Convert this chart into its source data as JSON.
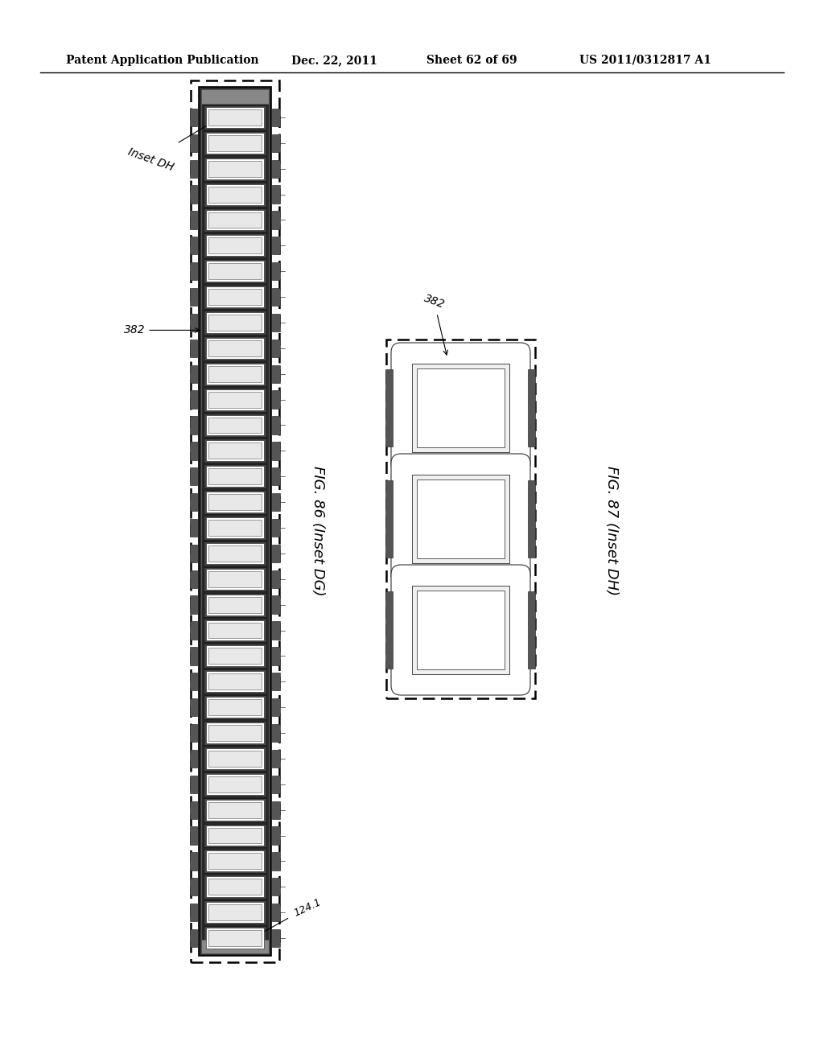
{
  "bg_color": "#ffffff",
  "header_text": "Patent Application Publication",
  "header_date": "Dec. 22, 2011",
  "header_sheet": "Sheet 62 of 69",
  "header_patent": "US 2011/0312817 A1",
  "fig86_label": "FIG. 86 (Inset DG)",
  "fig87_label": "FIG. 87 (Inset DH)",
  "label_382_left": "382",
  "label_382_right": "382",
  "label_inset_dh": "Inset DH",
  "label_124": "124.1",
  "n_cells_strip": 33,
  "n_cells_small": 3
}
